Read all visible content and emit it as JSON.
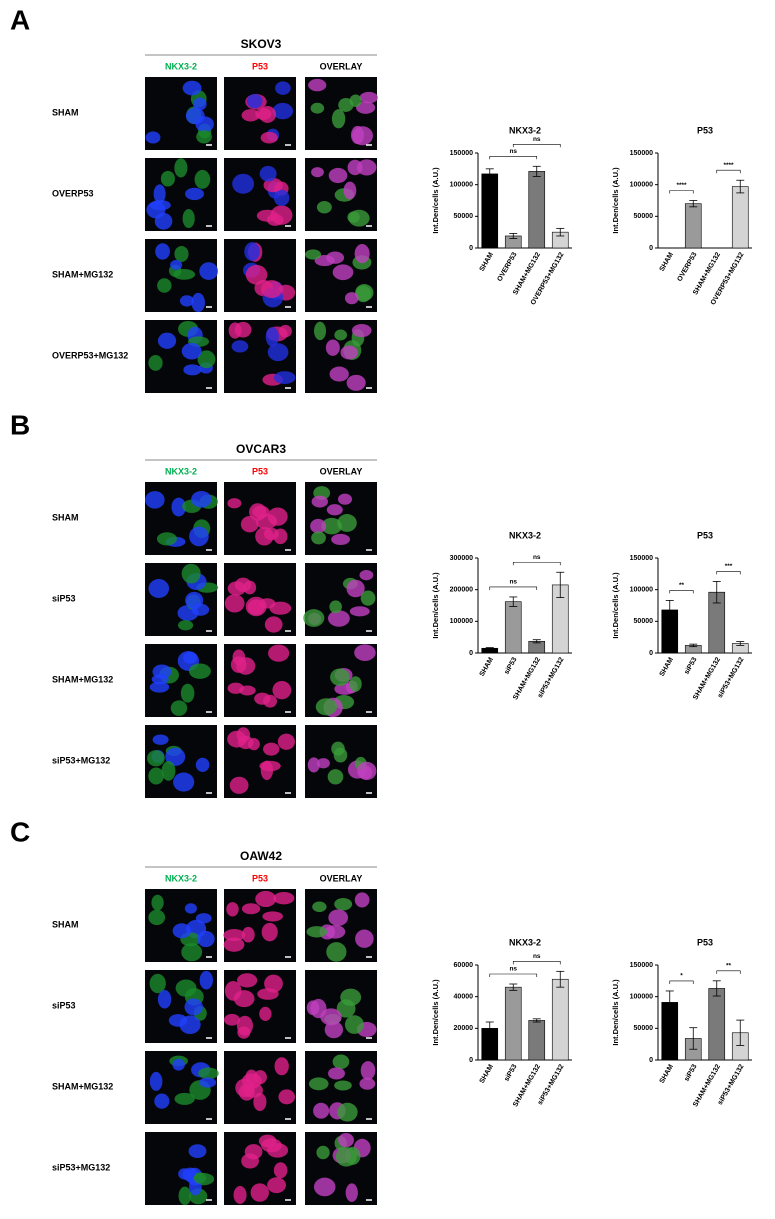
{
  "panels": [
    {
      "label": "A",
      "cell_line": "SKOV3",
      "columns": [
        "NKX3-2",
        "P53",
        "OVERLAY"
      ],
      "rows": [
        "SHAM",
        "OVERP53",
        "SHAM+MG132",
        "OVERP53+MG132"
      ]
    },
    {
      "label": "B",
      "cell_line": "OVCAR3",
      "columns": [
        "NKX3-2",
        "P53",
        "OVERLAY"
      ],
      "rows": [
        "SHAM",
        "siP53",
        "SHAM+MG132",
        "siP53+MG132"
      ]
    },
    {
      "label": "C",
      "cell_line": "OAW42",
      "columns": [
        "NKX3-2",
        "P53",
        "OVERLAY"
      ],
      "rows": [
        "SHAM",
        "siP53",
        "SHAM+MG132",
        "siP53+MG132"
      ]
    }
  ],
  "chart_data": [
    {
      "type": "bar",
      "title": "NKX3-2",
      "ylabel": "Int.Den/cells (A.U.)",
      "categories": [
        "SHAM",
        "OVERP53",
        "SHAM+MG132",
        "OVERP53+MG132"
      ],
      "values": [
        117000,
        19000,
        121000,
        25000
      ],
      "errors": [
        8000,
        4000,
        8000,
        6000
      ],
      "colors": [
        "#000000",
        "#9a9a9a",
        "#7a7a7a",
        "#d4d4d4"
      ],
      "ylim": [
        0,
        150000
      ],
      "yticks": [
        0,
        50000,
        100000,
        150000
      ],
      "annotations": [
        "ns",
        "ns"
      ]
    },
    {
      "type": "bar",
      "title": "P53",
      "ylabel": "Int.Den/cells (A.U.)",
      "categories": [
        "SHAM",
        "OVERP53",
        "SHAM+MG132",
        "OVERP53+MG132"
      ],
      "values": [
        0,
        70000,
        0,
        97000
      ],
      "errors": [
        0,
        5000,
        0,
        10000
      ],
      "colors": [
        "#000000",
        "#9a9a9a",
        "#7a7a7a",
        "#d4d4d4"
      ],
      "ylim": [
        0,
        150000
      ],
      "yticks": [
        0,
        50000,
        100000,
        150000
      ],
      "annotations": [
        "****",
        "****"
      ]
    },
    {
      "type": "bar",
      "title": "NKX3-2",
      "ylabel": "Int.Den/cells (A.U.)",
      "categories": [
        "SHAM",
        "siP53",
        "SHAM+MG132",
        "siP53+MG132"
      ],
      "values": [
        15000,
        162000,
        37000,
        215000
      ],
      "errors": [
        2000,
        15000,
        5000,
        40000
      ],
      "colors": [
        "#000000",
        "#9a9a9a",
        "#7a7a7a",
        "#d4d4d4"
      ],
      "ylim": [
        0,
        300000
      ],
      "yticks": [
        0,
        100000,
        200000,
        300000
      ],
      "annotations": [
        "ns",
        "ns"
      ]
    },
    {
      "type": "bar",
      "title": "P53",
      "ylabel": "Int.Den/cells (A.U.)",
      "categories": [
        "SHAM",
        "siP53",
        "SHAM+MG132",
        "siP53+MG132"
      ],
      "values": [
        68000,
        12000,
        96000,
        15000
      ],
      "errors": [
        15000,
        2000,
        17000,
        3000
      ],
      "colors": [
        "#000000",
        "#9a9a9a",
        "#7a7a7a",
        "#d4d4d4"
      ],
      "ylim": [
        0,
        150000
      ],
      "yticks": [
        0,
        50000,
        100000,
        150000
      ],
      "annotations": [
        "**",
        "***"
      ]
    },
    {
      "type": "bar",
      "title": "NKX3-2",
      "ylabel": "Int.Den/cells (A.U.)",
      "categories": [
        "SHAM",
        "siP53",
        "SHAM+MG132",
        "siP53+MG132"
      ],
      "values": [
        20000,
        46000,
        25000,
        51000
      ],
      "errors": [
        4000,
        2000,
        1000,
        5000
      ],
      "colors": [
        "#000000",
        "#9a9a9a",
        "#7a7a7a",
        "#d4d4d4"
      ],
      "ylim": [
        0,
        60000
      ],
      "yticks": [
        0,
        20000,
        40000,
        60000
      ],
      "annotations": [
        "ns",
        "ns"
      ]
    },
    {
      "type": "bar",
      "title": "P53",
      "ylabel": "Int.Den/cells (A.U.)",
      "categories": [
        "SHAM",
        "siP53",
        "SHAM+MG132",
        "siP53+MG132"
      ],
      "values": [
        91000,
        34000,
        113000,
        43000
      ],
      "errors": [
        18000,
        17000,
        12000,
        20000
      ],
      "colors": [
        "#000000",
        "#9a9a9a",
        "#7a7a7a",
        "#d4d4d4"
      ],
      "ylim": [
        0,
        150000
      ],
      "yticks": [
        0,
        50000,
        100000,
        150000
      ],
      "annotations": [
        "*",
        "**"
      ]
    }
  ]
}
